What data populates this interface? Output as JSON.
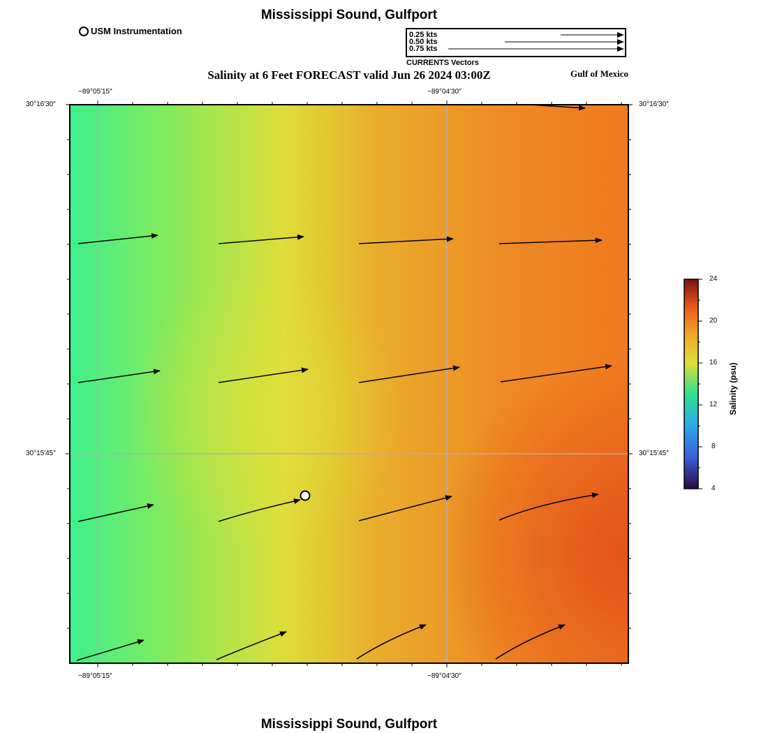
{
  "title": "Mississippi Sound, Gulfport",
  "bottom_title": "Mississippi Sound, Gulfport",
  "subtitle": "Salinity at 6 Feet FORECAST valid Jun 26 2024 03:00Z",
  "region_label": "Gulf of Mexico",
  "station_legend": {
    "label": "USM Instrumentation",
    "icon": "open-circle-marker"
  },
  "vector_legend": {
    "title": "CURRENTS Vectors",
    "entries": [
      {
        "label": "0.25 kts",
        "speed": 0.25
      },
      {
        "label": "0.50 kts",
        "speed": 0.5
      },
      {
        "label": "0.75 kts",
        "speed": 0.75
      }
    ]
  },
  "axes": {
    "top_lon_labels": [
      "−89°05′15″",
      "−89°04′30″"
    ],
    "bottom_lon_labels": [
      "−89°05′15″",
      "−89°04′30″"
    ],
    "left_lat_labels": [
      "30°16′30″",
      "30°15′45″"
    ],
    "right_lat_labels": [
      "30°16′30″",
      "30°15′45″"
    ]
  },
  "colorbar": {
    "title": "Salinity (psu)",
    "ticks": [
      "24",
      "20",
      "16",
      "12",
      "8",
      "4"
    ],
    "range": [
      4,
      24
    ],
    "colors": [
      "#2a0a4a",
      "#3b5fd6",
      "#2fa7e8",
      "#2ee08e",
      "#dede3a",
      "#f2a02a",
      "#e8581a",
      "#7a1010"
    ]
  },
  "field_colors": {
    "west": "#3ef08c",
    "mid": "#dede3a",
    "east": "#ef7a1f",
    "southeast": "#e4541a"
  },
  "station": {
    "name": "USM Instrumentation"
  }
}
